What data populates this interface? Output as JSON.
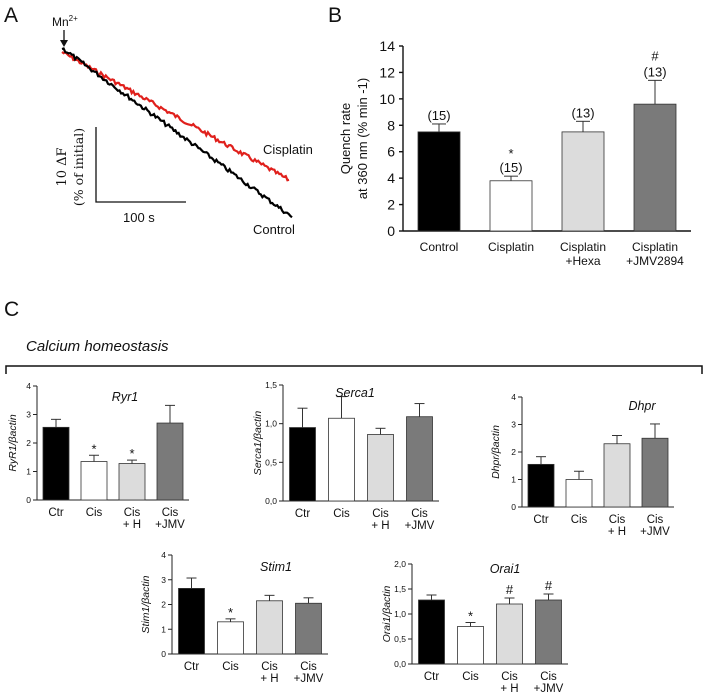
{
  "panel_letters": [
    "A",
    "B",
    "C"
  ],
  "panel_a": {
    "arrow_label": "Mn",
    "arrow_label_sup": "2+",
    "scale_y_line1": "10 ΔF",
    "scale_y_line2": "(% of initial)",
    "scale_x": "100 s",
    "trace_labels": [
      "Cisplatin",
      "Control"
    ],
    "colors": {
      "cisplatin": "#e0201c",
      "control": "#000000"
    }
  },
  "section_heading": "Calcium homeostasis",
  "chart_data": [
    {
      "id": "quench",
      "type": "bar",
      "title": "",
      "ylabel_line1": "Quench rate",
      "ylabel_line2": "at 360 nm (% min -1)",
      "ylim": [
        0,
        14
      ],
      "yticks": [
        "0",
        "2",
        "4",
        "6",
        "8",
        "10",
        "12",
        "14"
      ],
      "categories": [
        [
          "Control"
        ],
        [
          "Cisplatin"
        ],
        [
          "Cisplatin",
          "+Hexa"
        ],
        [
          "Cisplatin",
          "+JMV2894"
        ]
      ],
      "values": [
        7.5,
        3.8,
        7.5,
        9.6
      ],
      "errors": [
        0.6,
        0.35,
        0.8,
        1.8
      ],
      "counts": [
        "(15)",
        "(15)",
        "(13)",
        "(13)"
      ],
      "marks": [
        "",
        "*",
        "",
        "#"
      ],
      "fills": [
        "#000000",
        "#ffffff",
        "#dcdcdc",
        "#7a7a7a"
      ]
    },
    {
      "id": "ryr1",
      "type": "bar",
      "title": "Ryr1",
      "ylabel": "RyR1/βactin",
      "ylim": [
        0,
        4
      ],
      "yticks": [
        "0",
        "1",
        "2",
        "3",
        "4"
      ],
      "categories": [
        [
          "Ctr"
        ],
        [
          "Cis"
        ],
        [
          "Cis",
          "+ H"
        ],
        [
          "Cis",
          "+JMV"
        ]
      ],
      "values": [
        2.55,
        1.35,
        1.28,
        2.7
      ],
      "errors": [
        0.28,
        0.22,
        0.12,
        0.62
      ],
      "marks": [
        "",
        "*",
        "*",
        ""
      ],
      "fills": [
        "#000000",
        "#ffffff",
        "#dcdcdc",
        "#7a7a7a"
      ]
    },
    {
      "id": "serca1",
      "type": "bar",
      "title": "Serca1",
      "ylabel": "Serca1/βactin",
      "ylim": [
        0,
        1.5
      ],
      "yticks": [
        "0,0",
        "0,5",
        "1,0",
        "1,5"
      ],
      "categories": [
        [
          "Ctr"
        ],
        [
          "Cis"
        ],
        [
          "Cis",
          "+ H"
        ],
        [
          "Cis",
          "+JMV"
        ]
      ],
      "values": [
        0.95,
        1.07,
        0.86,
        1.09
      ],
      "errors": [
        0.25,
        0.28,
        0.08,
        0.17
      ],
      "marks": [
        "",
        "",
        "",
        ""
      ],
      "fills": [
        "#000000",
        "#ffffff",
        "#dcdcdc",
        "#7a7a7a"
      ]
    },
    {
      "id": "dhpr",
      "type": "bar",
      "title": "Dhpr",
      "ylabel": "Dhpr/βactin",
      "ylim": [
        0,
        4
      ],
      "yticks": [
        "0",
        "1",
        "2",
        "3",
        "4"
      ],
      "categories": [
        [
          "Ctr"
        ],
        [
          "Cis"
        ],
        [
          "Cis",
          "+ H"
        ],
        [
          "Cis",
          "+JMV"
        ]
      ],
      "values": [
        1.55,
        1.0,
        2.3,
        2.5
      ],
      "errors": [
        0.28,
        0.3,
        0.3,
        0.52
      ],
      "marks": [
        "",
        "",
        "",
        ""
      ],
      "fills": [
        "#000000",
        "#ffffff",
        "#dcdcdc",
        "#7a7a7a"
      ]
    },
    {
      "id": "stim1",
      "type": "bar",
      "title": "Stim1",
      "ylabel": "Stim1/βactin",
      "ylim": [
        0,
        4
      ],
      "yticks": [
        "0",
        "1",
        "2",
        "3",
        "4"
      ],
      "categories": [
        [
          "Ctr"
        ],
        [
          "Cis"
        ],
        [
          "Cis",
          "+ H"
        ],
        [
          "Cis",
          "+JMV"
        ]
      ],
      "values": [
        2.65,
        1.3,
        2.15,
        2.05
      ],
      "errors": [
        0.42,
        0.12,
        0.22,
        0.22
      ],
      "marks": [
        "",
        "*",
        "",
        ""
      ],
      "fills": [
        "#000000",
        "#ffffff",
        "#dcdcdc",
        "#7a7a7a"
      ]
    },
    {
      "id": "orai1",
      "type": "bar",
      "title": "Orai1",
      "ylabel": "Orai1/βactin",
      "ylim": [
        0,
        2.0
      ],
      "yticks": [
        "0,0",
        "0,5",
        "1,0",
        "1,5",
        "2,0"
      ],
      "categories": [
        [
          "Ctr"
        ],
        [
          "Cis"
        ],
        [
          "Cis",
          "+ H"
        ],
        [
          "Cis",
          "+JMV"
        ]
      ],
      "values": [
        1.28,
        0.75,
        1.2,
        1.28
      ],
      "errors": [
        0.1,
        0.08,
        0.12,
        0.12
      ],
      "marks": [
        "",
        "*",
        "#",
        "#"
      ],
      "fills": [
        "#000000",
        "#ffffff",
        "#dcdcdc",
        "#7a7a7a"
      ]
    }
  ]
}
